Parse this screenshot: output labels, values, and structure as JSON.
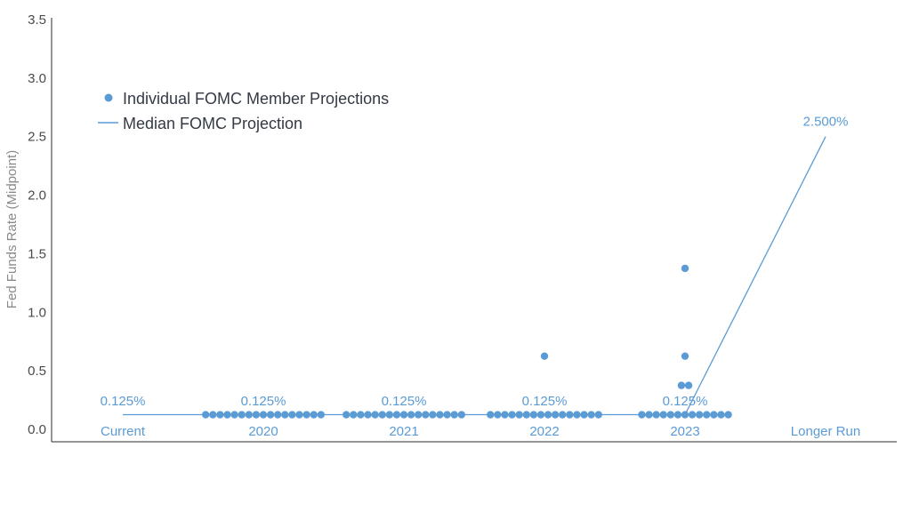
{
  "chart_data": {
    "type": "scatter",
    "ylabel": "Fed Funds Rate (Midpoint)",
    "ylim": [
      0,
      3.5
    ],
    "yticks": [
      "0.0",
      "0.5",
      "1.0",
      "1.5",
      "2.0",
      "2.5",
      "3.0",
      "3.5"
    ],
    "categories": [
      "Current",
      "2020",
      "2021",
      "2022",
      "2023",
      "Longer Run"
    ],
    "legend": {
      "position": "top-left",
      "entries": [
        "Individual FOMC Member Projections",
        "Median FOMC Projection"
      ]
    },
    "colors": {
      "dots": "#5b9bd5",
      "median": "#5b9bd5",
      "tick_label": "#5b9bd5"
    },
    "series": [
      {
        "name": "Individual FOMC Member Projections",
        "kind": "dots",
        "points": [
          {
            "category": "2020",
            "y": 0.125,
            "count": 17
          },
          {
            "category": "2021",
            "y": 0.125,
            "count": 17
          },
          {
            "category": "2022",
            "y": 0.125,
            "count": 16
          },
          {
            "category": "2022",
            "y": 0.625,
            "count": 1
          },
          {
            "category": "2023",
            "y": 0.125,
            "count": 13
          },
          {
            "category": "2023",
            "y": 0.375,
            "count": 2
          },
          {
            "category": "2023",
            "y": 0.625,
            "count": 1
          },
          {
            "category": "2023",
            "y": 1.375,
            "count": 1
          }
        ]
      },
      {
        "name": "Median FOMC Projection",
        "kind": "line",
        "values": [
          {
            "category": "Current",
            "y": 0.125,
            "label": "0.125%"
          },
          {
            "category": "2020",
            "y": 0.125,
            "label": "0.125%"
          },
          {
            "category": "2021",
            "y": 0.125,
            "label": "0.125%"
          },
          {
            "category": "2022",
            "y": 0.125,
            "label": "0.125%"
          },
          {
            "category": "2023",
            "y": 0.125,
            "label": "0.125%"
          },
          {
            "category": "Longer Run",
            "y": 2.5,
            "label": "2.500%"
          }
        ]
      }
    ]
  }
}
